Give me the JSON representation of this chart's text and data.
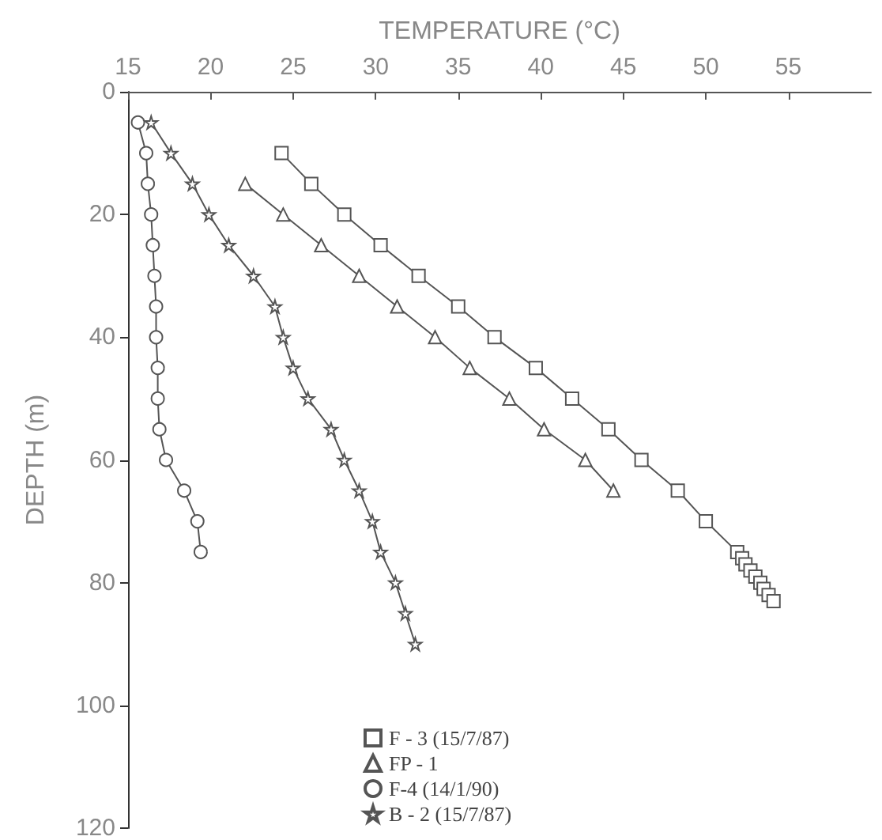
{
  "chart_data": {
    "type": "line",
    "xlabel": "TEMPERATURE (°C)",
    "ylabel": "DEPTH (m)",
    "xlim": [
      15,
      60
    ],
    "xticks": [
      15,
      20,
      25,
      30,
      35,
      40,
      45,
      50,
      55
    ],
    "ylim": [
      120,
      0
    ],
    "yticks": [
      0,
      20,
      40,
      60,
      80,
      100,
      120
    ],
    "grid": false,
    "legend": "bottom",
    "series": [
      {
        "name": "F - 3 (15/7/87)",
        "color": "#555555",
        "marker": "square",
        "x": [
          24.3,
          26.1,
          28.1,
          30.3,
          32.6,
          35.0,
          37.2,
          39.7,
          41.9,
          44.1,
          46.1,
          48.3,
          50.0,
          51.9,
          52.2,
          52.4,
          52.7,
          53.0,
          53.3,
          53.5,
          53.8,
          54.1
        ],
        "values": [
          10,
          15,
          20,
          25,
          30,
          35,
          40,
          45,
          50,
          55,
          60,
          65,
          70,
          75,
          76,
          77,
          78,
          79,
          80,
          81,
          82,
          83
        ]
      },
      {
        "name": "FP - 1",
        "color": "#555555",
        "marker": "triangle",
        "x": [
          22.1,
          24.4,
          26.7,
          29.0,
          31.3,
          33.6,
          35.7,
          38.1,
          40.2,
          42.7,
          44.4
        ],
        "values": [
          15,
          20,
          25,
          30,
          35,
          40,
          45,
          50,
          55,
          60,
          65
        ]
      },
      {
        "name": "F-4 (14/1/90)",
        "color": "#555555",
        "marker": "circle",
        "x": [
          15.6,
          16.1,
          16.2,
          16.4,
          16.5,
          16.6,
          16.7,
          16.7,
          16.8,
          16.8,
          16.9,
          17.3,
          18.4,
          19.2,
          19.4
        ],
        "values": [
          5,
          10,
          15,
          20,
          25,
          30,
          35,
          40,
          45,
          50,
          55,
          60,
          65,
          70,
          75
        ]
      },
      {
        "name": "B - 2 (15/7/87)",
        "color": "#555555",
        "marker": "star",
        "x": [
          16.4,
          17.6,
          18.9,
          19.9,
          21.1,
          22.6,
          23.9,
          24.4,
          25.0,
          25.9,
          27.3,
          28.1,
          29.0,
          29.8,
          30.3,
          31.2,
          31.8,
          32.4
        ],
        "values": [
          5,
          10,
          15,
          20,
          25,
          30,
          35,
          40,
          45,
          50,
          55,
          60,
          65,
          70,
          75,
          80,
          85,
          90
        ]
      }
    ]
  }
}
